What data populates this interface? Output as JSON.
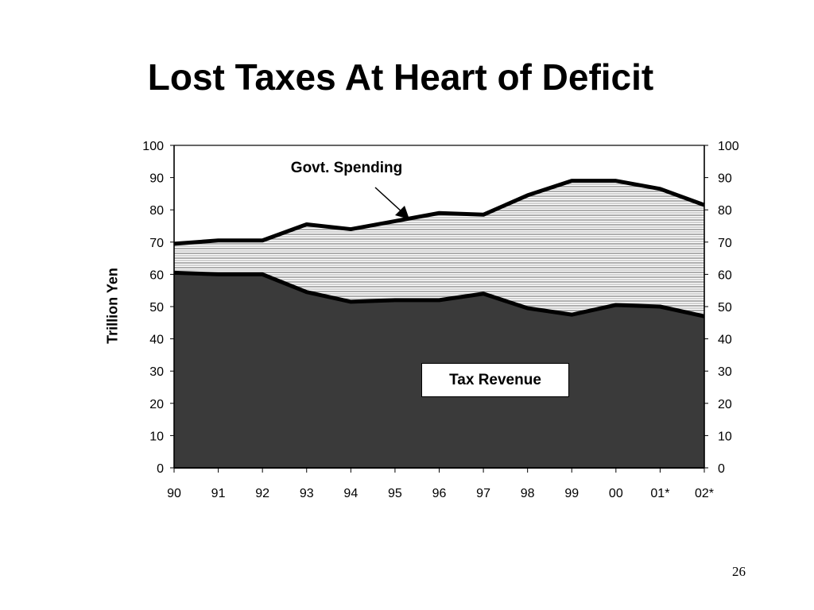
{
  "slide": {
    "title": "Lost Taxes At Heart of Deficit",
    "page_number": "26"
  },
  "chart_data": {
    "type": "area",
    "x": [
      "90",
      "91",
      "92",
      "93",
      "94",
      "95",
      "96",
      "97",
      "98",
      "99",
      "00",
      "01*",
      "02*"
    ],
    "series": [
      {
        "name": "Govt. Spending",
        "values": [
          69.5,
          70.5,
          70.5,
          75.5,
          74,
          76.5,
          79,
          78.5,
          84.5,
          89,
          89,
          86.5,
          81.5
        ]
      },
      {
        "name": "Tax Revenue",
        "values": [
          60.5,
          60,
          60,
          54.5,
          51.5,
          52,
          52,
          54,
          49.5,
          47.5,
          50.5,
          50,
          47
        ]
      }
    ],
    "ylabel": "Trillion Yen",
    "ylim": [
      0,
      100
    ],
    "yticks": [
      0,
      10,
      20,
      30,
      40,
      50,
      60,
      70,
      80,
      90,
      100
    ],
    "ytick_labels": [
      "0",
      "10",
      "20",
      "30",
      "40",
      "50",
      "60",
      "70",
      "80",
      "90",
      "100"
    ],
    "secondary_yaxis": true,
    "annotations": {
      "spending_label": "Govt. Spending",
      "revenue_label": "Tax Revenue"
    },
    "colors": {
      "revenue_fill": "#3a3a3a",
      "spending_fill_hatch": "#9a9a9a",
      "line": "#000000"
    },
    "grid": false
  }
}
